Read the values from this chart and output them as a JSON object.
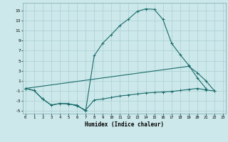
{
  "xlabel": "Humidex (Indice chaleur)",
  "background_color": "#cce8ea",
  "grid_color": "#aacfd2",
  "line_color": "#1a6b6b",
  "ylim": [
    -5.5,
    16.5
  ],
  "xlim": [
    -0.3,
    23.3
  ],
  "yticks": [
    -5,
    -3,
    -1,
    1,
    3,
    5,
    7,
    9,
    11,
    13,
    15
  ],
  "xticks": [
    0,
    1,
    2,
    3,
    4,
    5,
    6,
    7,
    8,
    9,
    10,
    11,
    12,
    13,
    14,
    15,
    16,
    17,
    18,
    19,
    20,
    21,
    22,
    23
  ],
  "line1_x": [
    0,
    1,
    2,
    3,
    4,
    5,
    6,
    7,
    8,
    9,
    10,
    11,
    12,
    13,
    14,
    15,
    16,
    17,
    18,
    19,
    20,
    21
  ],
  "line1_y": [
    -0.5,
    -0.9,
    -2.6,
    -3.8,
    -3.5,
    -3.6,
    -3.8,
    -5.0,
    6.0,
    8.5,
    10.2,
    12.0,
    13.3,
    14.8,
    15.3,
    15.2,
    13.2,
    8.5,
    6.2,
    4.1,
    1.6,
    -0.5
  ],
  "line2_x": [
    0,
    1,
    2,
    3,
    4,
    5,
    6,
    7,
    8,
    9,
    10,
    11,
    12,
    13,
    14,
    15,
    16,
    17,
    18,
    19,
    20,
    21,
    22
  ],
  "line2_y": [
    -0.5,
    -0.9,
    -2.6,
    -3.8,
    -3.5,
    -3.5,
    -4.0,
    -4.8,
    -2.8,
    -2.6,
    -2.3,
    -2.0,
    -1.8,
    -1.6,
    -1.4,
    -1.3,
    -1.2,
    -1.1,
    -0.9,
    -0.7,
    -0.5,
    -0.8,
    -1.0
  ],
  "line3_x": [
    0,
    19,
    20,
    21,
    22
  ],
  "line3_y": [
    -0.5,
    3.9,
    2.6,
    1.0,
    -1.0
  ]
}
